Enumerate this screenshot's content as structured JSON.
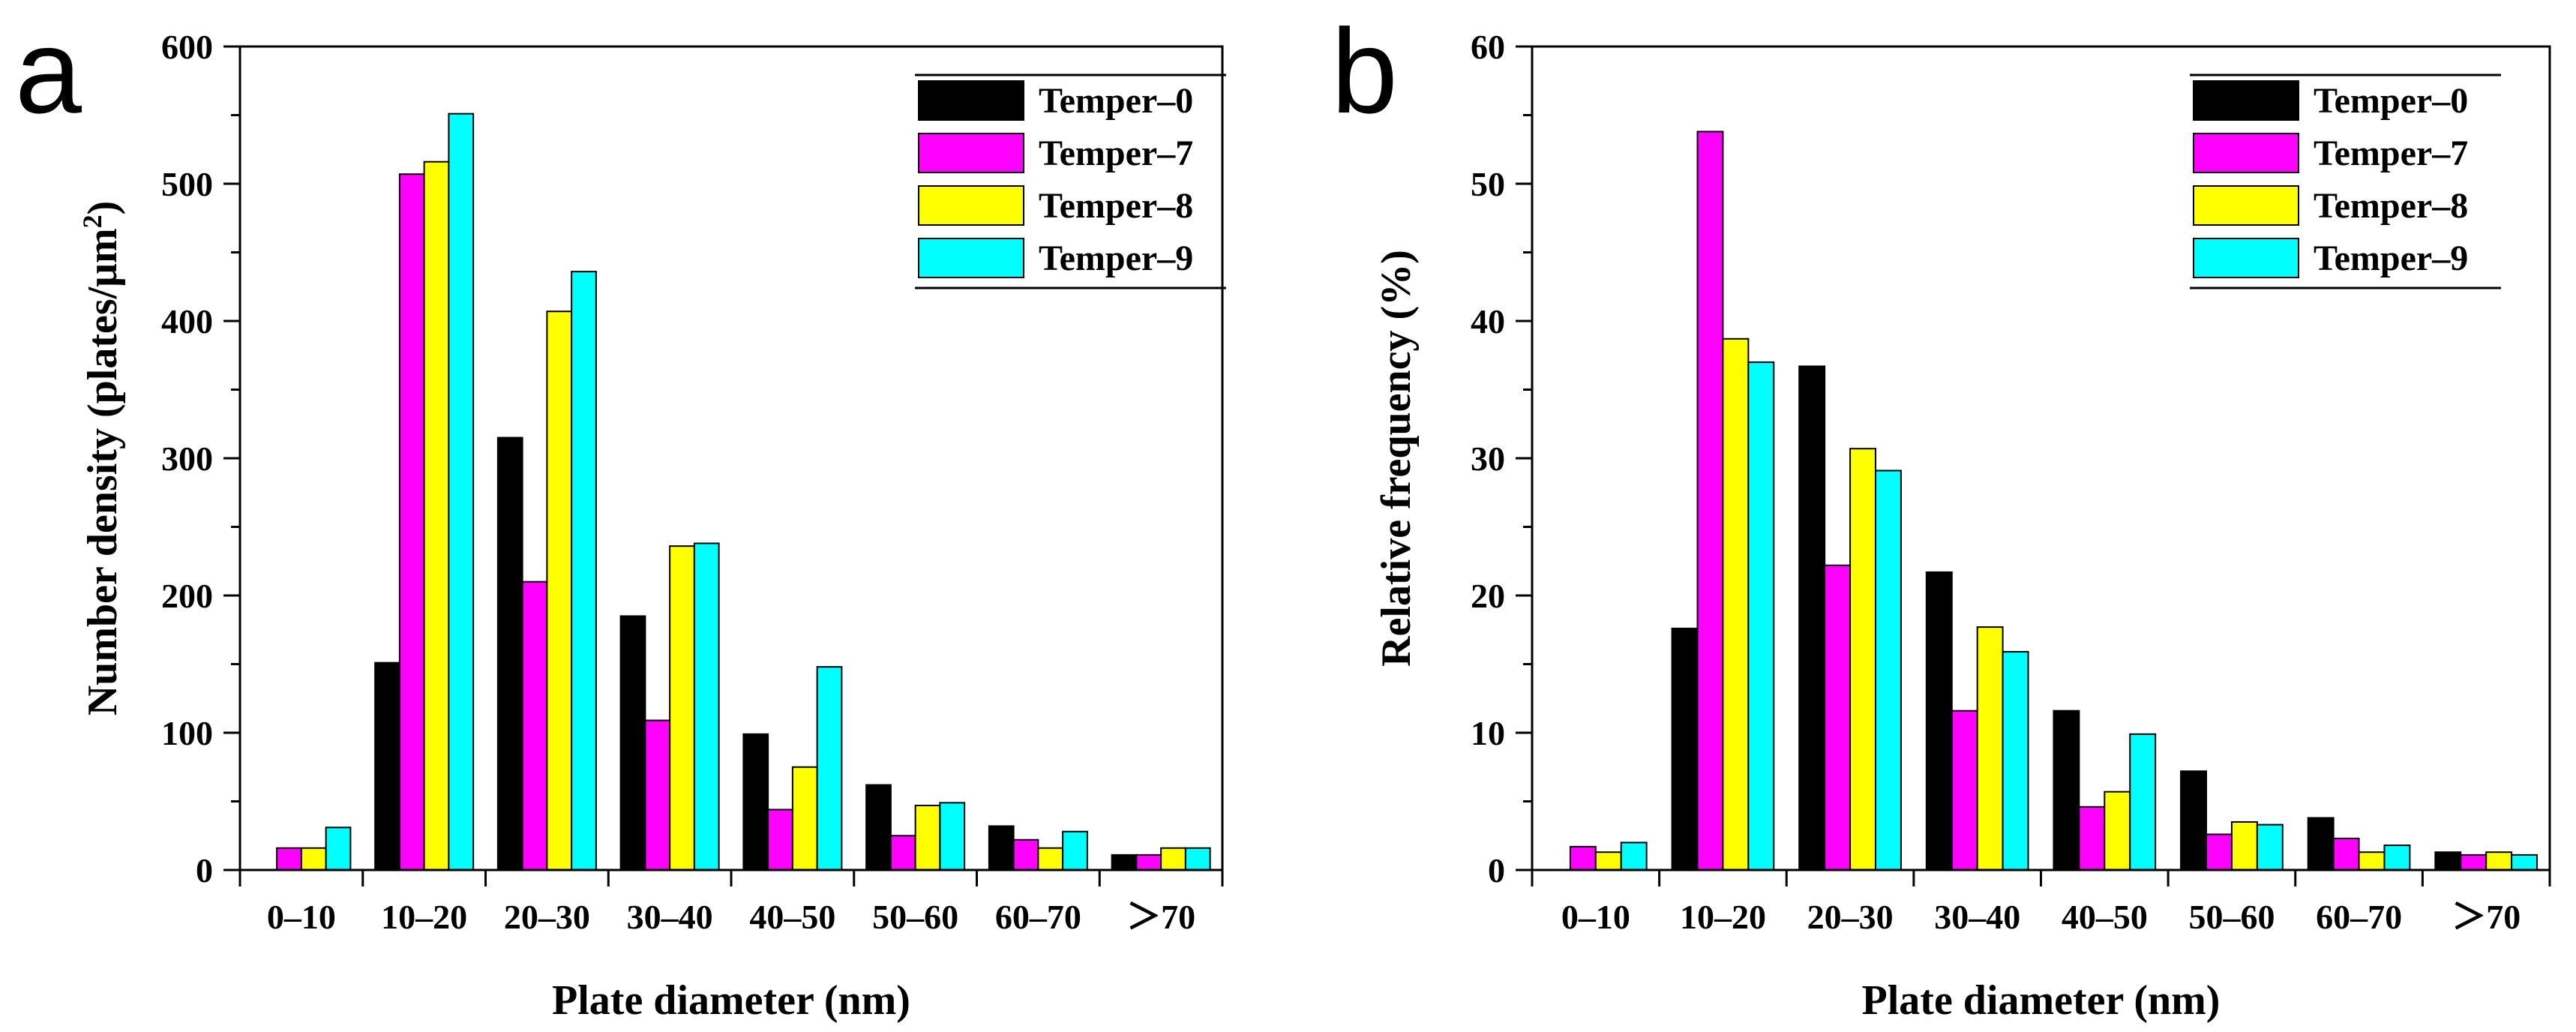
{
  "chart_data": [
    {
      "panel_label": "a",
      "type": "bar",
      "xlabel": "Plate diameter (nm)",
      "ylabel_main": "Number density (plates/μm",
      "ylabel_sup": "2",
      "ylabel_end": ")",
      "ylim": [
        0,
        600
      ],
      "yticks": [
        "0",
        "100",
        "200",
        "300",
        "400",
        "500",
        "600"
      ],
      "categories": [
        "0–10",
        "10–20",
        "20–30",
        "30–40",
        "40–50",
        "50–60",
        "60–70",
        "＞70"
      ],
      "legend_position": "top-right",
      "series": [
        {
          "name": "Temper–0",
          "color": "#000000",
          "values": [
            0,
            151,
            315,
            185,
            99,
            62,
            32,
            11
          ]
        },
        {
          "name": "Temper–7",
          "color": "#ff00ff",
          "values": [
            16,
            507,
            210,
            109,
            44,
            25,
            22,
            11
          ]
        },
        {
          "name": "Temper–8",
          "color": "#ffff00",
          "values": [
            16,
            516,
            407,
            236,
            75,
            47,
            16,
            16
          ]
        },
        {
          "name": "Temper–9",
          "color": "#00ffff",
          "values": [
            31,
            551,
            436,
            238,
            148,
            49,
            28,
            16
          ]
        }
      ]
    },
    {
      "panel_label": "b",
      "type": "bar",
      "xlabel": "Plate diameter (nm)",
      "ylabel_main": "Relative frequency (%)",
      "ylabel_sup": "",
      "ylabel_end": "",
      "ylim": [
        0,
        60
      ],
      "yticks": [
        "0",
        "10",
        "20",
        "30",
        "40",
        "50",
        "60"
      ],
      "categories": [
        "0–10",
        "10–20",
        "20–30",
        "30–40",
        "40–50",
        "50–60",
        "60–70",
        "＞70"
      ],
      "legend_position": "top-right",
      "series": [
        {
          "name": "Temper–0",
          "color": "#000000",
          "values": [
            0,
            17.6,
            36.7,
            21.7,
            11.6,
            7.2,
            3.8,
            1.3
          ]
        },
        {
          "name": "Temper–7",
          "color": "#ff00ff",
          "values": [
            1.7,
            53.8,
            22.2,
            11.6,
            4.6,
            2.6,
            2.3,
            1.1
          ]
        },
        {
          "name": "Temper–8",
          "color": "#ffff00",
          "values": [
            1.3,
            38.7,
            30.7,
            17.7,
            5.7,
            3.5,
            1.3,
            1.3
          ]
        },
        {
          "name": "Temper–9",
          "color": "#00ffff",
          "values": [
            2.0,
            37.0,
            29.1,
            15.9,
            9.9,
            3.3,
            1.8,
            1.1
          ]
        }
      ]
    }
  ]
}
